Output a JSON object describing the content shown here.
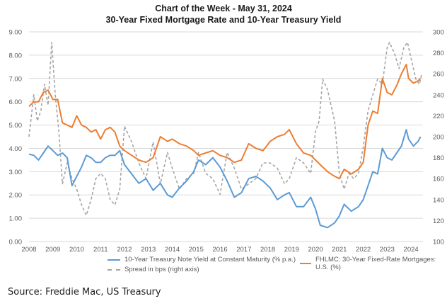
{
  "chart_data": {
    "type": "line",
    "title": "Chart of the Week - May 31, 2024",
    "subtitle": "30-Year Fixed Mortgage Rate and 10-Year Treasury Yield",
    "xlabel": "",
    "ylabel": "",
    "y2label": "",
    "xlim": [
      2008,
      2024.5
    ],
    "ylim": [
      0,
      9
    ],
    "y2lim": [
      100,
      300
    ],
    "x_ticks": [
      "2008",
      "2009",
      "2010",
      "2011",
      "2012",
      "2013",
      "2014",
      "2015",
      "2016",
      "2017",
      "2018",
      "2019",
      "2020",
      "2021",
      "2022",
      "2023",
      "2024"
    ],
    "y_ticks": [
      "0.00",
      "1.00",
      "2.00",
      "3.00",
      "4.00",
      "5.00",
      "6.00",
      "7.00",
      "8.00",
      "9.00"
    ],
    "y2_ticks": [
      "100",
      "120",
      "140",
      "160",
      "180",
      "200",
      "220",
      "240",
      "260",
      "280",
      "300"
    ],
    "grid": true,
    "legend_position": "bottom",
    "series": [
      {
        "name": "10-Year Treasury Note Yield at Constant Maturity (% p.a.)",
        "axis": "left",
        "color": "#5b9bd5",
        "style": "solid",
        "x": [
          2008.0,
          2008.2,
          2008.4,
          2008.6,
          2008.8,
          2009.0,
          2009.2,
          2009.4,
          2009.6,
          2009.8,
          2010.0,
          2010.2,
          2010.4,
          2010.6,
          2010.8,
          2011.0,
          2011.2,
          2011.4,
          2011.6,
          2011.8,
          2012.0,
          2012.3,
          2012.6,
          2012.9,
          2013.2,
          2013.5,
          2013.8,
          2014.0,
          2014.3,
          2014.6,
          2014.9,
          2015.1,
          2015.4,
          2015.7,
          2016.0,
          2016.3,
          2016.6,
          2016.9,
          2017.2,
          2017.5,
          2017.8,
          2018.1,
          2018.4,
          2018.7,
          2018.9,
          2019.2,
          2019.5,
          2019.8,
          2020.0,
          2020.2,
          2020.5,
          2020.8,
          2021.0,
          2021.2,
          2021.5,
          2021.8,
          2022.0,
          2022.2,
          2022.4,
          2022.6,
          2022.8,
          2023.0,
          2023.2,
          2023.4,
          2023.6,
          2023.8,
          2023.9,
          2024.1,
          2024.3,
          2024.4
        ],
        "values": [
          3.75,
          3.7,
          3.5,
          3.8,
          4.1,
          3.9,
          3.7,
          3.8,
          3.6,
          2.4,
          2.8,
          3.2,
          3.7,
          3.6,
          3.4,
          3.4,
          3.6,
          3.7,
          3.7,
          3.9,
          3.3,
          2.9,
          2.5,
          2.7,
          2.2,
          2.5,
          2.0,
          1.9,
          2.3,
          2.6,
          3.0,
          3.5,
          3.3,
          3.6,
          3.2,
          2.6,
          1.9,
          2.1,
          2.7,
          2.8,
          2.6,
          2.3,
          1.8,
          2.0,
          2.1,
          1.5,
          1.5,
          1.9,
          1.4,
          0.7,
          0.6,
          0.8,
          1.1,
          1.6,
          1.3,
          1.5,
          1.8,
          2.4,
          3.0,
          2.9,
          4.0,
          3.6,
          3.5,
          3.8,
          4.1,
          4.8,
          4.4,
          4.1,
          4.3,
          4.5
        ],
        "note": "values approximate, read from plot"
      },
      {
        "name": "FHLMC: 30-Year Fixed-Rate Mortgages: U.S. (%)",
        "axis": "left",
        "color": "#ed7d31",
        "style": "solid",
        "x": [
          2008.0,
          2008.2,
          2008.4,
          2008.6,
          2008.8,
          2009.0,
          2009.2,
          2009.4,
          2009.6,
          2009.8,
          2010.0,
          2010.2,
          2010.4,
          2010.6,
          2010.8,
          2011.0,
          2011.2,
          2011.4,
          2011.6,
          2011.8,
          2012.0,
          2012.3,
          2012.6,
          2012.9,
          2013.2,
          2013.5,
          2013.8,
          2014.0,
          2014.3,
          2014.6,
          2014.9,
          2015.1,
          2015.4,
          2015.7,
          2016.0,
          2016.3,
          2016.6,
          2016.9,
          2017.2,
          2017.5,
          2017.8,
          2018.1,
          2018.4,
          2018.7,
          2018.9,
          2019.2,
          2019.5,
          2019.8,
          2020.0,
          2020.2,
          2020.5,
          2020.8,
          2021.0,
          2021.2,
          2021.5,
          2021.8,
          2022.0,
          2022.2,
          2022.4,
          2022.6,
          2022.8,
          2023.0,
          2023.2,
          2023.4,
          2023.6,
          2023.8,
          2023.9,
          2024.1,
          2024.3,
          2024.4
        ],
        "values": [
          5.8,
          6.0,
          6.0,
          6.4,
          6.5,
          6.1,
          6.1,
          5.1,
          5.0,
          4.9,
          5.4,
          5.0,
          4.9,
          4.7,
          4.8,
          4.4,
          4.8,
          4.9,
          4.7,
          4.1,
          3.9,
          3.7,
          3.5,
          3.4,
          3.6,
          4.5,
          4.3,
          4.4,
          4.2,
          4.1,
          3.9,
          3.7,
          3.8,
          3.9,
          3.7,
          3.6,
          3.4,
          3.5,
          4.2,
          4.0,
          3.9,
          4.3,
          4.5,
          4.6,
          4.8,
          4.2,
          3.8,
          3.7,
          3.5,
          3.3,
          3.0,
          2.8,
          2.7,
          3.1,
          2.9,
          3.1,
          3.4,
          5.0,
          5.6,
          5.5,
          7.0,
          6.4,
          6.3,
          6.7,
          7.2,
          7.6,
          7.0,
          6.8,
          6.9,
          7.0
        ],
        "note": "values approximate, read from plot"
      },
      {
        "name": "Spread in bps (right axis)",
        "axis": "right",
        "color": "#a5a5a5",
        "style": "dashed",
        "x": [
          2008.0,
          2008.2,
          2008.35,
          2008.5,
          2008.65,
          2008.8,
          2008.95,
          2009.1,
          2009.25,
          2009.4,
          2009.6,
          2009.8,
          2010.0,
          2010.2,
          2010.4,
          2010.6,
          2010.8,
          2011.0,
          2011.2,
          2011.4,
          2011.6,
          2011.8,
          2012.0,
          2012.3,
          2012.6,
          2012.9,
          2013.2,
          2013.5,
          2013.8,
          2014.0,
          2014.3,
          2014.6,
          2014.9,
          2015.1,
          2015.4,
          2015.7,
          2016.0,
          2016.3,
          2016.6,
          2016.9,
          2017.2,
          2017.5,
          2017.8,
          2018.1,
          2018.4,
          2018.7,
          2018.9,
          2019.2,
          2019.5,
          2019.8,
          2020.0,
          2020.15,
          2020.3,
          2020.5,
          2020.8,
          2021.0,
          2021.2,
          2021.4,
          2021.6,
          2021.8,
          2022.0,
          2022.2,
          2022.4,
          2022.6,
          2022.8,
          2023.0,
          2023.1,
          2023.3,
          2023.5,
          2023.7,
          2023.85,
          2024.0,
          2024.2,
          2024.35,
          2024.45
        ],
        "values": [
          200,
          240,
          215,
          225,
          250,
          230,
          290,
          240,
          205,
          155,
          175,
          160,
          150,
          135,
          125,
          140,
          160,
          165,
          160,
          140,
          135,
          150,
          210,
          195,
          175,
          160,
          195,
          155,
          185,
          170,
          150,
          160,
          165,
          185,
          165,
          160,
          145,
          185,
          170,
          150,
          155,
          160,
          175,
          175,
          170,
          155,
          160,
          180,
          175,
          165,
          205,
          215,
          255,
          245,
          215,
          165,
          150,
          165,
          160,
          165,
          190,
          225,
          240,
          255,
          250,
          285,
          290,
          280,
          265,
          285,
          290,
          275,
          255,
          250,
          260
        ],
        "note": "values approximate, read from plot"
      }
    ]
  },
  "source_text": "Source: Freddie Mac, US Treasury"
}
